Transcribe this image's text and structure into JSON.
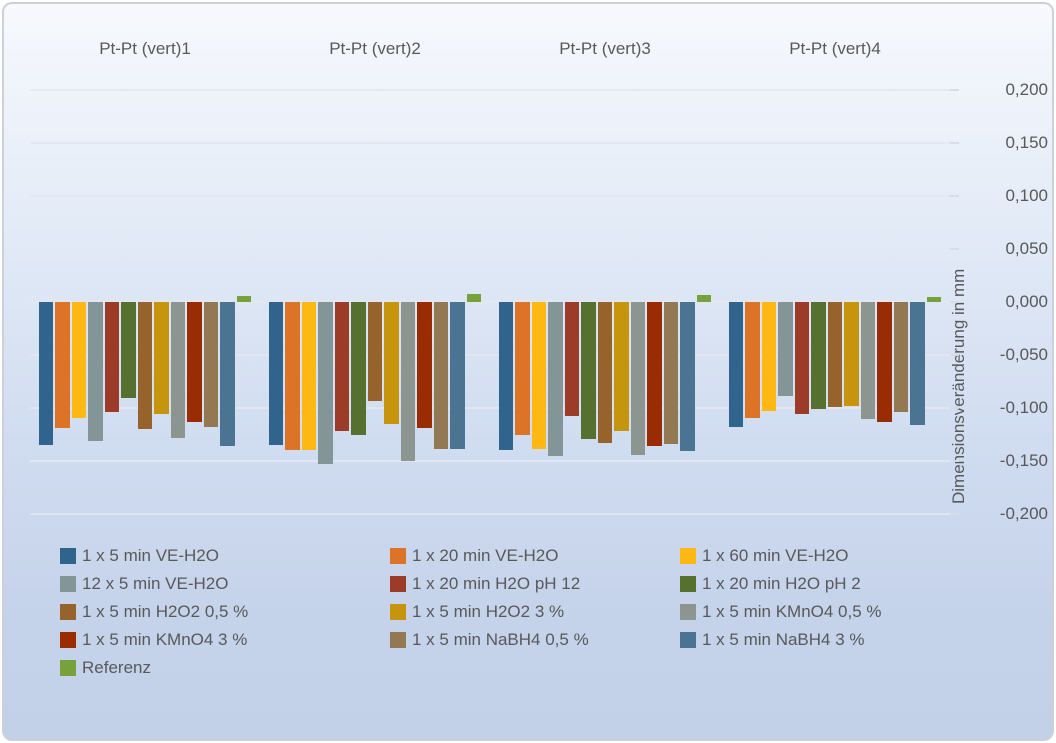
{
  "chart_data": {
    "type": "bar",
    "categories": [
      "Pt-Pt (vert)1",
      "Pt-Pt (vert)2",
      "Pt-Pt (vert)3",
      "Pt-Pt (vert)4"
    ],
    "series": [
      {
        "name": "1 x 5 min VE-H2O",
        "color": "#31648c",
        "values": [
          -0.135,
          -0.135,
          -0.14,
          -0.118
        ]
      },
      {
        "name": "1 x 20 min VE-H2O",
        "color": "#dd7327",
        "values": [
          -0.119,
          -0.14,
          -0.125,
          -0.109
        ]
      },
      {
        "name": "1 x 60 min VE-H2O",
        "color": "#fdb813",
        "values": [
          -0.109,
          -0.14,
          -0.139,
          -0.103
        ]
      },
      {
        "name": "12 x 5 min VE-H2O",
        "color": "#849598",
        "values": [
          -0.131,
          -0.153,
          -0.145,
          -0.089
        ]
      },
      {
        "name": "1 x 20 min H2O pH 12",
        "color": "#9b3b28",
        "values": [
          -0.104,
          -0.122,
          -0.108,
          -0.106
        ]
      },
      {
        "name": "1 x 20 min H2O pH 2",
        "color": "#55702f",
        "values": [
          -0.091,
          -0.125,
          -0.129,
          -0.101
        ]
      },
      {
        "name": "1 x 5 min H2O2 0,5 %",
        "color": "#96632c",
        "values": [
          -0.12,
          -0.093,
          -0.133,
          -0.099
        ]
      },
      {
        "name": "1 x 5 min H2O2 3 %",
        "color": "#c6950d",
        "values": [
          -0.106,
          -0.115,
          -0.122,
          -0.098
        ]
      },
      {
        "name": "1 x 5 min KMnO4 0,5 %",
        "color": "#8d9590",
        "values": [
          -0.128,
          -0.15,
          -0.144,
          -0.11
        ]
      },
      {
        "name": "1 x 5 min KMnO4 3 %",
        "color": "#9a2c04",
        "values": [
          -0.113,
          -0.119,
          -0.136,
          -0.113
        ]
      },
      {
        "name": "1 x 5 min NaBH4 0,5 %",
        "color": "#927853",
        "values": [
          -0.118,
          -0.139,
          -0.134,
          -0.104
        ]
      },
      {
        "name": "1 x 5 min NaBH4 3 %",
        "color": "#4a7492",
        "values": [
          -0.136,
          -0.139,
          -0.141,
          -0.116
        ]
      },
      {
        "name": "Referenz",
        "color": "#76a13d",
        "values": [
          0.006,
          0.008,
          0.007,
          0.005
        ]
      }
    ],
    "title": "",
    "xlabel": "",
    "ylabel": "Dimensionsveränderung in mm",
    "ylim": [
      -0.2,
      0.2
    ],
    "ytick_step": 0.05,
    "ytick_labels": [
      "0,200",
      "0,150",
      "0,100",
      "0,050",
      "0,000",
      "-0,050",
      "-0,100",
      "-0,150",
      "-0,200"
    ],
    "grid": true,
    "legend_position": "bottom",
    "category_labels_position": "top"
  }
}
